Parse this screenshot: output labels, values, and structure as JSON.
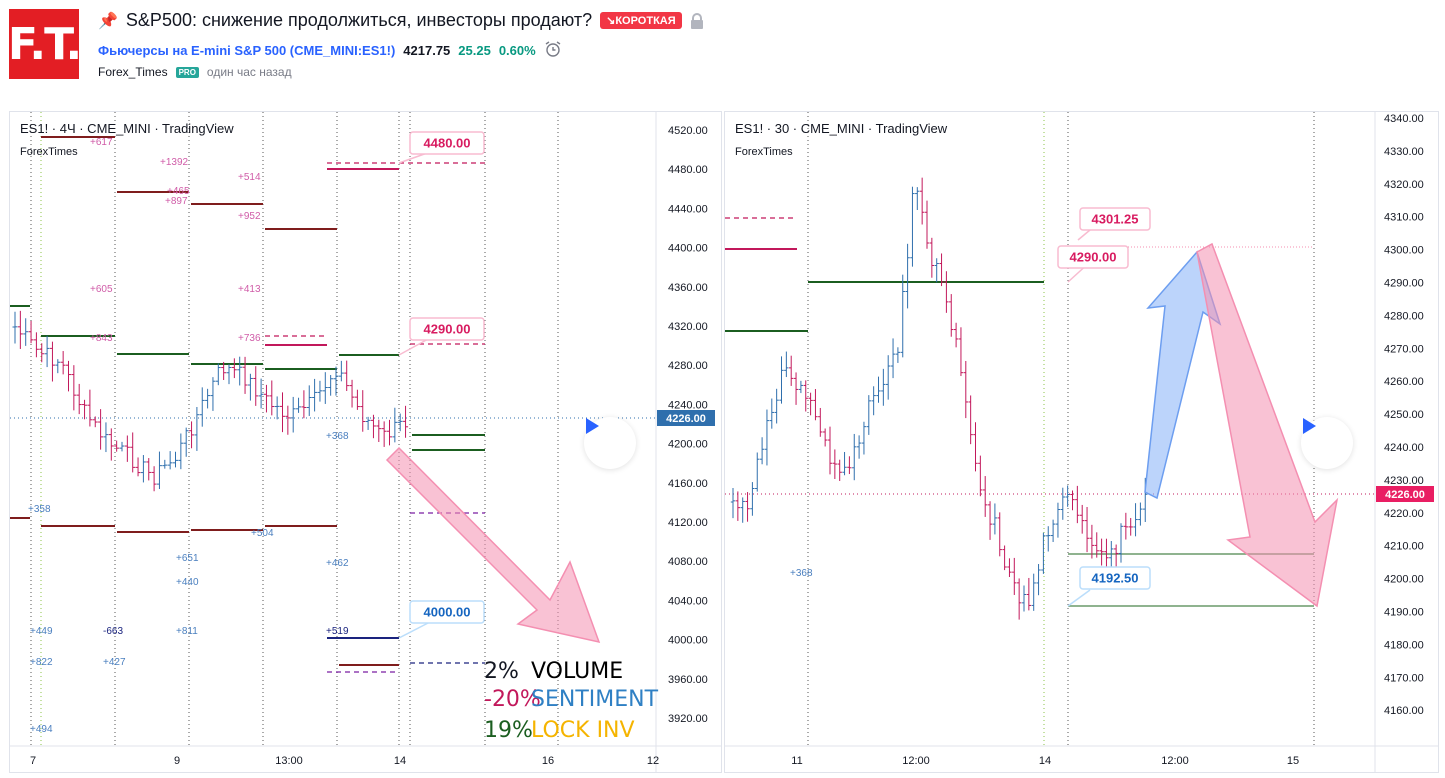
{
  "logo": {
    "text": "F.T."
  },
  "idea": {
    "title": "S&P500: снижение продолжиться, инвесторы продают?",
    "badge": "↘КОРОТКАЯ",
    "symbol_name": "Фьючерсы на E-mini S&P 500",
    "symbol_code": "CME_MINI:ES1!",
    "price": "4217.75",
    "change": "25.25",
    "change_pct": "0.60%",
    "author": "Forex_Times",
    "author_badge": "PRO",
    "time_ago": "один час назад"
  },
  "left_chart": {
    "title": "ES1! · 4Ч · CME_MINI · TradingView",
    "subtitle": "ForexTimes",
    "price_axis": [
      "4520.00",
      "4480.00",
      "4440.00",
      "4400.00",
      "4360.00",
      "4320.00",
      "4280.00",
      "4240.00",
      "4200.00",
      "4160.00",
      "4120.00",
      "4080.00",
      "4040.00",
      "4000.00",
      "3960.00",
      "3920.00"
    ],
    "current_price": "4226.00",
    "time_axis": [
      "7",
      "9",
      "13:00",
      "14",
      "16",
      "12"
    ],
    "callouts": [
      "4480.00",
      "4290.00",
      "4000.00"
    ],
    "annotations": [
      "+617",
      "+1392",
      "+514",
      "+465",
      "+897",
      "+952",
      "+605",
      "+413",
      "+843",
      "+736",
      "+368",
      "+358",
      "+504",
      "+651",
      "+462",
      "+440",
      "+449",
      "-663",
      "+811",
      "+519",
      "+822",
      "+427",
      "+494"
    ],
    "stats": [
      {
        "pct": "2%",
        "label": "VOLUME",
        "pct_color": "#131722",
        "label_color": "#000000"
      },
      {
        "pct": "-20%",
        "label": "SENTIMENT",
        "pct_color": "#c2185b",
        "label_color": "#2f80c4"
      },
      {
        "pct": "19%",
        "label": "LOCK INV",
        "pct_color": "#1b5e20",
        "label_color": "#f5b400"
      }
    ]
  },
  "right_chart": {
    "title": "ES1! · 30 · CME_MINI · TradingView",
    "subtitle": "ForexTimes",
    "price_axis": [
      "4340.00",
      "4330.00",
      "4320.00",
      "4310.00",
      "4300.00",
      "4290.00",
      "4280.00",
      "4270.00",
      "4260.00",
      "4250.00",
      "4240.00",
      "4230.00",
      "4220.00",
      "4210.00",
      "4200.00",
      "4190.00",
      "4180.00",
      "4170.00",
      "4160.00"
    ],
    "current_price": "4226.00",
    "time_axis": [
      "11",
      "12:00",
      "14",
      "12:00",
      "15"
    ],
    "callouts": [
      "4301.25",
      "4290.00",
      "4192.50"
    ],
    "annotations": [
      "+368"
    ]
  },
  "colors": {
    "up": "#2f6fad",
    "down": "#c2185b",
    "green_level": "#1b5e20",
    "red_level": "#7f1d1d",
    "pink_arrow": "#f48fb1",
    "blue_arrow": "#90b8f8",
    "accent": "#2962ff"
  },
  "icons": {
    "pin": "pushpin-icon",
    "lock": "lock-icon",
    "alarm": "alarm-clock-icon",
    "play": "play-icon"
  }
}
